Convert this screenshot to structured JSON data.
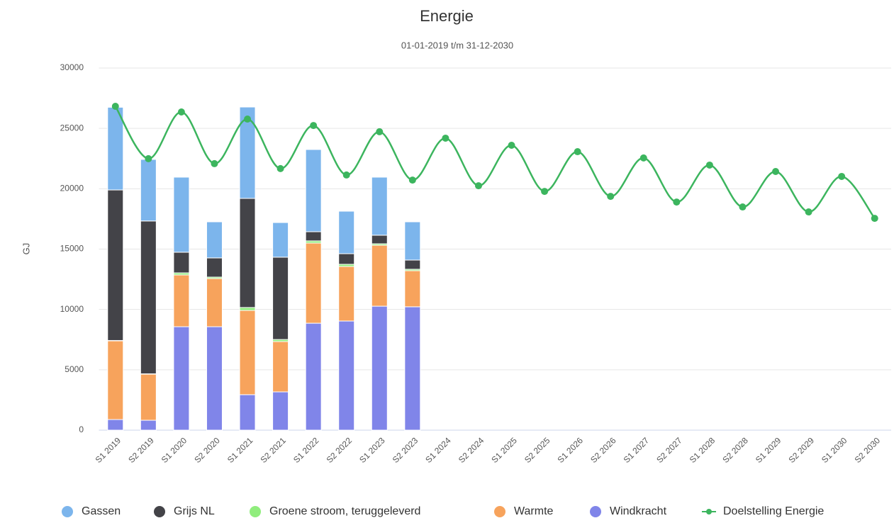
{
  "chart_data": {
    "type": "stacked-bar-line",
    "title": "Energie",
    "subtitle": "01-01-2019 t/m 31-12-2030",
    "ylabel": "GJ",
    "categories": [
      "S1 2019",
      "S2 2019",
      "S1 2020",
      "S2 2020",
      "S1 2021",
      "S2 2021",
      "S1 2022",
      "S2 2022",
      "S1 2023",
      "S2 2023",
      "S1 2024",
      "S2 2024",
      "S1 2025",
      "S2 2025",
      "S1 2026",
      "S2 2026",
      "S1 2027",
      "S2 2027",
      "S1 2028",
      "S2 2028",
      "S1 2029",
      "S2 2029",
      "S1 2030",
      "S2 2030"
    ],
    "ylim": [
      0,
      30000
    ],
    "yticks": [
      0,
      5000,
      10000,
      15000,
      20000,
      25000,
      30000
    ],
    "grid": true,
    "legend": "bottom",
    "series": [
      {
        "name": "Gassen",
        "color": "#7cb5ec",
        "kind": "bar",
        "values": [
          6850,
          5100,
          6220,
          2990,
          7570,
          2870,
          6810,
          3520,
          4810,
          3170,
          null,
          null,
          null,
          null,
          null,
          null,
          null,
          null,
          null,
          null,
          null,
          null,
          null,
          null
        ]
      },
      {
        "name": "Grijs NL",
        "color": "#434348",
        "kind": "bar",
        "values": [
          12470,
          12660,
          1710,
          1590,
          9040,
          6820,
          760,
          880,
          710,
          760,
          null,
          null,
          null,
          null,
          null,
          null,
          null,
          null,
          null,
          null,
          null,
          null,
          null,
          null
        ]
      },
      {
        "name": "Groene stroom, teruggeleverd",
        "color": "#90ed7d",
        "kind": "bar",
        "values": [
          30,
          30,
          170,
          120,
          240,
          170,
          180,
          180,
          120,
          120,
          null,
          null,
          null,
          null,
          null,
          null,
          null,
          null,
          null,
          null,
          null,
          null,
          null,
          null
        ]
      },
      {
        "name": "Warmte",
        "color": "#f7a35c",
        "kind": "bar",
        "values": [
          6520,
          3820,
          4290,
          3990,
          6980,
          4170,
          6640,
          4520,
          5050,
          2990,
          null,
          null,
          null,
          null,
          null,
          null,
          null,
          null,
          null,
          null,
          null,
          null,
          null,
          null
        ]
      },
      {
        "name": "Windkracht",
        "color": "#8085e9",
        "kind": "bar",
        "values": [
          880,
          820,
          8570,
          8570,
          2940,
          3170,
          8860,
          9040,
          10270,
          10220,
          null,
          null,
          null,
          null,
          null,
          null,
          null,
          null,
          null,
          null,
          null,
          null,
          null,
          null
        ]
      },
      {
        "name": "Doelstelling Energie",
        "color": "#3cb55e",
        "kind": "line",
        "values": [
          26830,
          22490,
          26360,
          22080,
          25770,
          21670,
          25240,
          21140,
          24720,
          20720,
          24190,
          20250,
          23600,
          19780,
          23070,
          19370,
          22550,
          18900,
          21960,
          18490,
          21430,
          18080,
          21020,
          17550
        ]
      }
    ]
  }
}
